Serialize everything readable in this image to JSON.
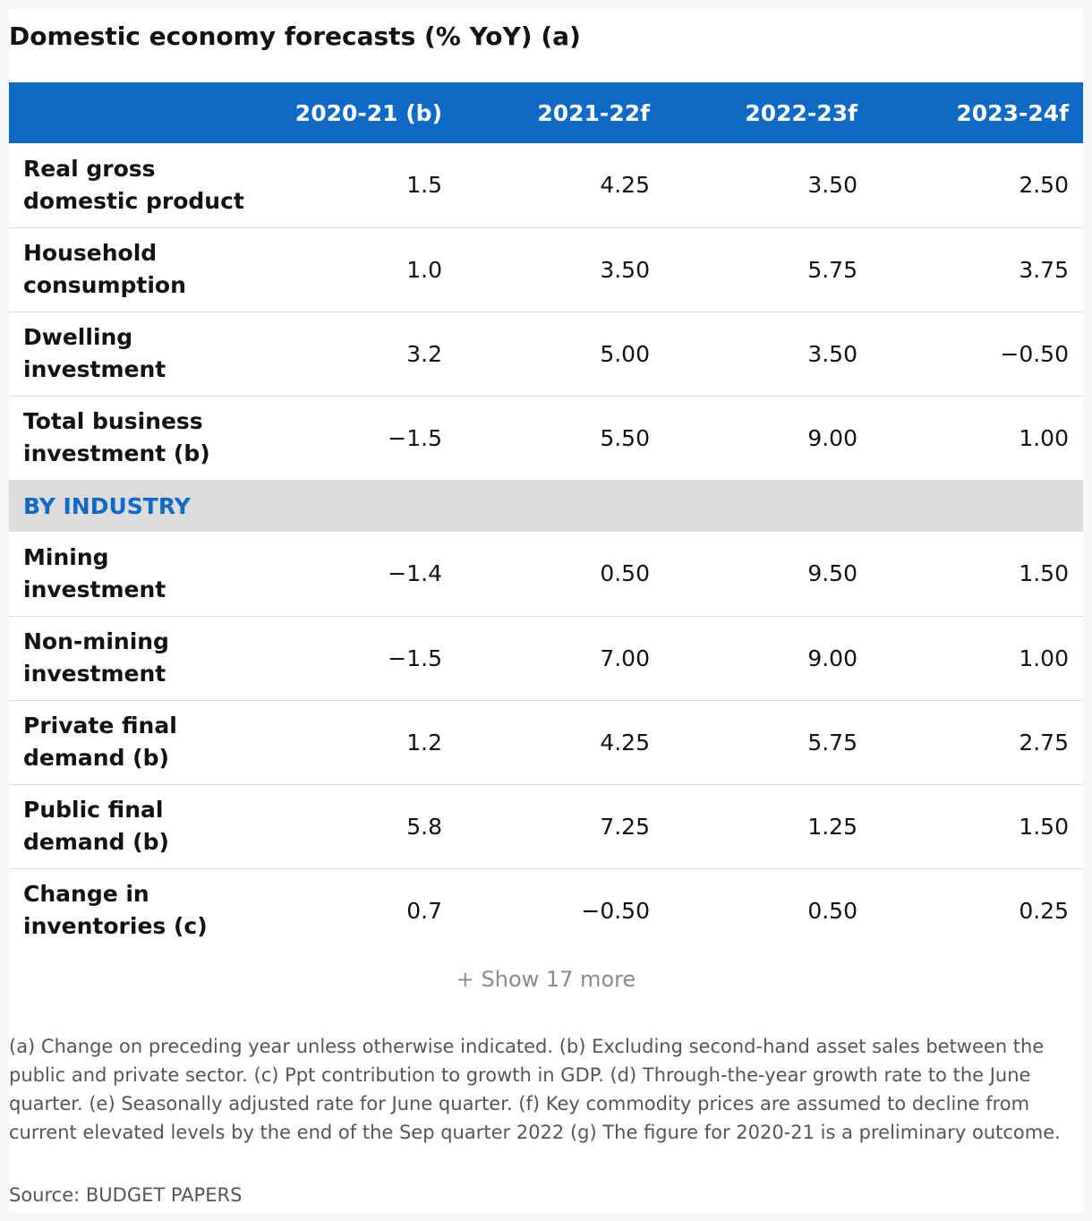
{
  "title": "Domestic economy forecasts (% YoY) (a)",
  "table": {
    "headers": [
      "",
      "2020-21 (b)",
      "2021-22f",
      "2022-23f",
      "2023-24f"
    ],
    "rows_top": [
      {
        "label": "Real gross domestic product",
        "values": [
          "1.5",
          "4.25",
          "3.50",
          "2.50"
        ]
      },
      {
        "label": "Household consumption",
        "values": [
          "1.0",
          "3.50",
          "5.75",
          "3.75"
        ]
      },
      {
        "label": "Dwelling investment",
        "values": [
          "3.2",
          "5.00",
          "3.50",
          "−0.50"
        ]
      },
      {
        "label": "Total business investment (b)",
        "values": [
          "−1.5",
          "5.50",
          "9.00",
          "1.00"
        ]
      }
    ],
    "section_label": "BY INDUSTRY",
    "rows_bottom": [
      {
        "label": "Mining investment",
        "values": [
          "−1.4",
          "0.50",
          "9.50",
          "1.50"
        ]
      },
      {
        "label": "Non-mining investment",
        "values": [
          "−1.5",
          "7.00",
          "9.00",
          "1.00"
        ]
      },
      {
        "label": "Private final demand (b)",
        "values": [
          "1.2",
          "4.25",
          "5.75",
          "2.75"
        ]
      },
      {
        "label": "Public final demand (b)",
        "values": [
          "5.8",
          "7.25",
          "1.25",
          "1.50"
        ]
      },
      {
        "label": "Change in inventories (c)",
        "values": [
          "0.7",
          "−0.50",
          "0.50",
          "0.25"
        ]
      }
    ]
  },
  "show_more": "+ Show 17 more",
  "notes": "(a) Change on preceding year unless otherwise indicated. (b) Excluding second-hand asset sales between the public and private sector. (c) Ppt contribution to growth in GDP. (d) Through-the-year growth rate to the June quarter. (e) Seasonally adjusted rate for June quarter. (f) Key commodity prices are assumed to decline from current elevated levels by the end of the Sep quarter 2022 (g) The figure for 2020-21 is a preliminary outcome.",
  "source": "Source: BUDGET PAPERS"
}
